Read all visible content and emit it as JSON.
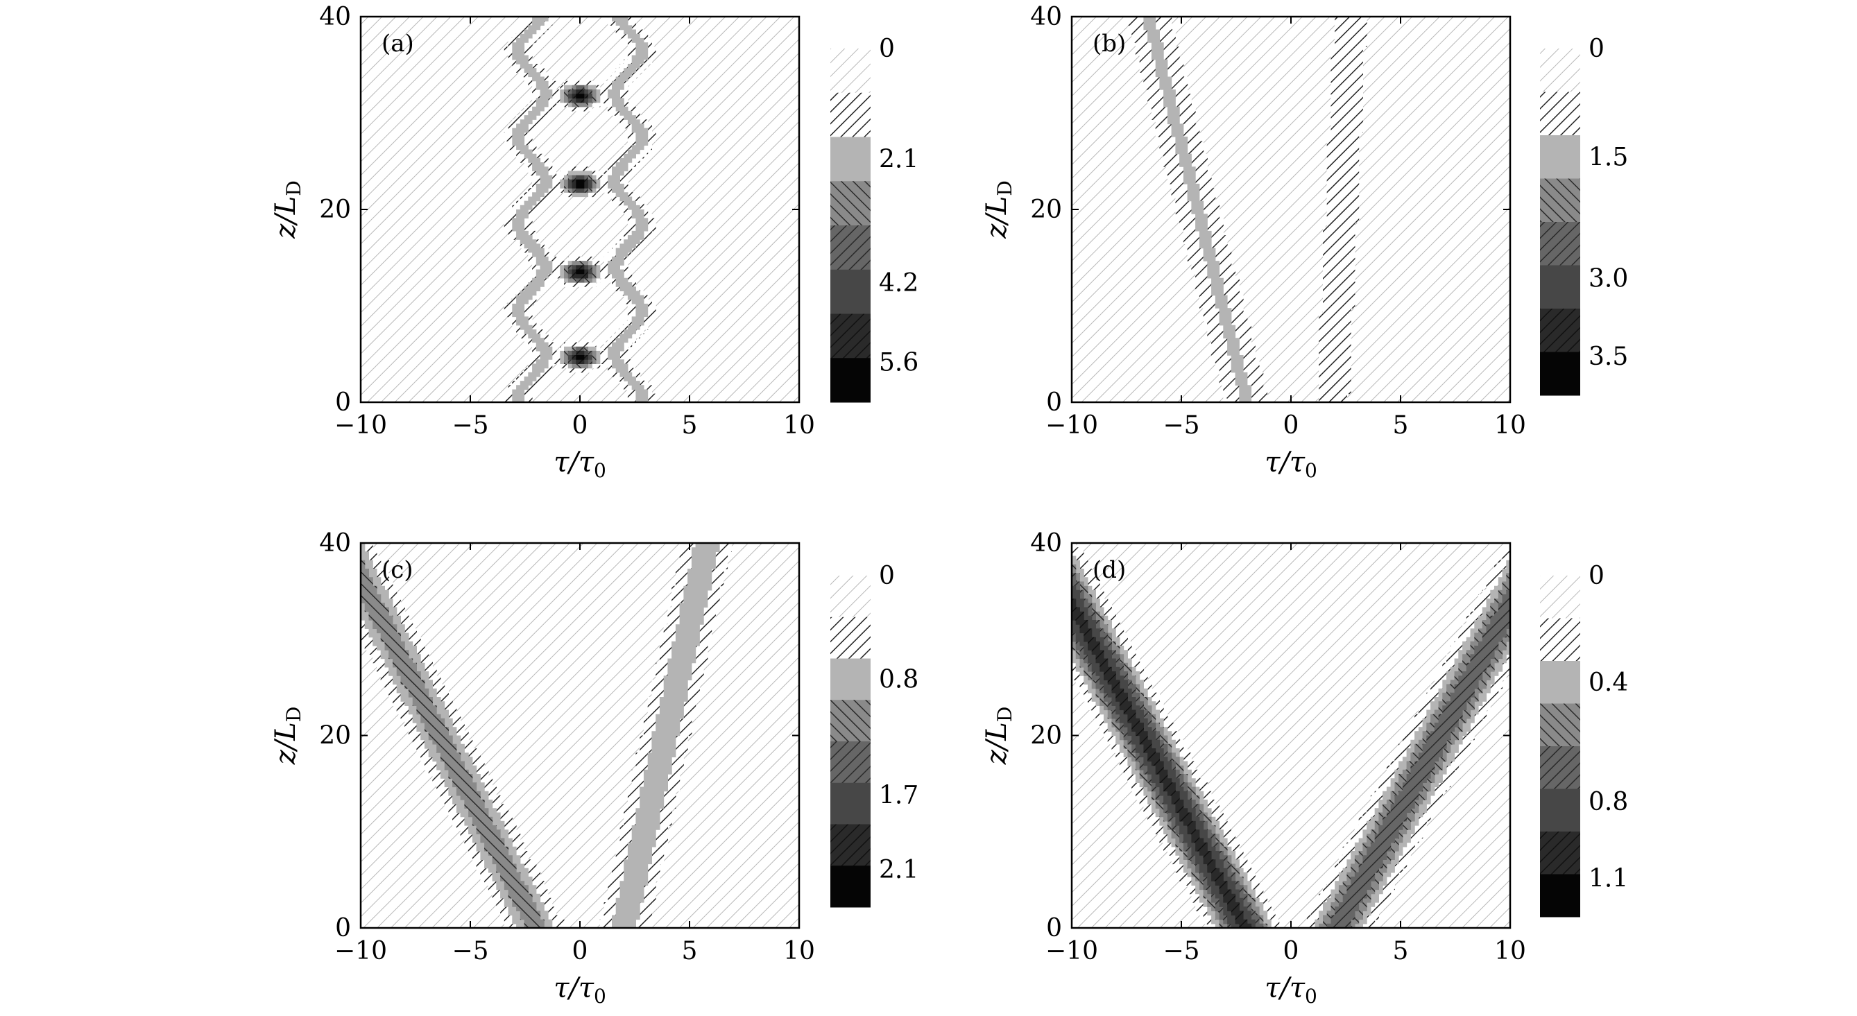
{
  "figure": {
    "description_free": true
  },
  "chart_data": [
    {
      "type": "heatmap",
      "panel": "(a)",
      "xlabel_main": "τ/τ",
      "xlabel_sub": "0",
      "ylabel_main": "z/L",
      "ylabel_sub": "D",
      "xlim": [
        -10,
        10
      ],
      "ylim": [
        0,
        40
      ],
      "xticks": [
        -10,
        -5,
        0,
        5,
        10
      ],
      "yticks": [
        0,
        20,
        40
      ],
      "xtick_labels": [
        "−10",
        "−5",
        "0",
        "5",
        "10"
      ],
      "ytick_labels": [
        "0",
        "20",
        "40"
      ],
      "colorbar_labels": [
        "0",
        "2.1",
        "4.2",
        "5.6"
      ],
      "colorbar_levels": [
        0,
        0.7,
        1.4,
        2.1,
        2.8,
        3.5,
        4.2,
        4.9,
        5.6
      ],
      "pattern": "breather",
      "centers": [
        -2.2,
        2.2
      ],
      "period": 9.0,
      "peaks": [
        [
          0,
          4.7
        ],
        [
          0,
          13.5
        ],
        [
          0,
          22.7
        ],
        [
          0,
          31.8
        ]
      ]
    },
    {
      "type": "heatmap",
      "panel": "(b)",
      "xlabel_main": "τ/τ",
      "xlabel_sub": "0",
      "ylabel_main": "z/L",
      "ylabel_sub": "D",
      "xlim": [
        -10,
        10
      ],
      "ylim": [
        0,
        40
      ],
      "xticks": [
        -10,
        -5,
        0,
        5,
        10
      ],
      "yticks": [
        0,
        20,
        40
      ],
      "xtick_labels": [
        "−10",
        "−5",
        "0",
        "5",
        "10"
      ],
      "ytick_labels": [
        "0",
        "20",
        "40"
      ],
      "colorbar_labels": [
        "0",
        "1.5",
        "3.0",
        "3.5"
      ],
      "colorbar_levels": [
        0,
        0.5,
        1.0,
        1.5,
        2.0,
        2.5,
        3.0,
        3.5
      ],
      "pattern": "split",
      "left_beam": {
        "start": -2.0,
        "end": -6.5,
        "width": 1.1
      },
      "right_beam": {
        "start": 1.9,
        "end": 2.7,
        "width": 1.0
      }
    },
    {
      "type": "heatmap",
      "panel": "(c)",
      "xlabel_main": "τ/τ",
      "xlabel_sub": "0",
      "ylabel_main": "z/L",
      "ylabel_sub": "D",
      "xlim": [
        -10,
        10
      ],
      "ylim": [
        0,
        40
      ],
      "xticks": [
        -10,
        -5,
        0,
        5,
        10
      ],
      "yticks": [
        0,
        20,
        40
      ],
      "xtick_labels": [
        "−10",
        "−5",
        "0",
        "5",
        "10"
      ],
      "ytick_labels": [
        "0",
        "20",
        "40"
      ],
      "colorbar_labels": [
        "0",
        "0.8",
        "1.7",
        "2.1"
      ],
      "colorbar_levels": [
        0,
        0.4,
        0.8,
        1.2,
        1.7,
        2.1
      ],
      "pattern": "split",
      "left_beam": {
        "start": -2.0,
        "end": -10.8,
        "width": 1.2
      },
      "right_beam": {
        "start": 2.0,
        "end": 5.8,
        "width": 1.1
      }
    },
    {
      "type": "heatmap",
      "panel": "(d)",
      "xlabel_main": "τ/τ",
      "xlabel_sub": "0",
      "ylabel_main": "z/L",
      "ylabel_sub": "D",
      "xlim": [
        -10,
        10
      ],
      "ylim": [
        0,
        40
      ],
      "xticks": [
        -10,
        -5,
        0,
        5,
        10
      ],
      "yticks": [
        0,
        20,
        40
      ],
      "xtick_labels": [
        "−10",
        "−5",
        "0",
        "5",
        "10"
      ],
      "ytick_labels": [
        "0",
        "20",
        "40"
      ],
      "colorbar_labels": [
        "0",
        "0.4",
        "0.8",
        "1.1"
      ],
      "colorbar_levels": [
        0,
        0.2,
        0.4,
        0.6,
        0.8,
        1.0,
        1.1,
        1.2
      ],
      "pattern": "split",
      "left_beam": {
        "start": -2.1,
        "end": -11.5,
        "width": 1.3
      },
      "right_beam": {
        "start": 2.1,
        "end": 11.5,
        "width": 1.3
      }
    }
  ]
}
